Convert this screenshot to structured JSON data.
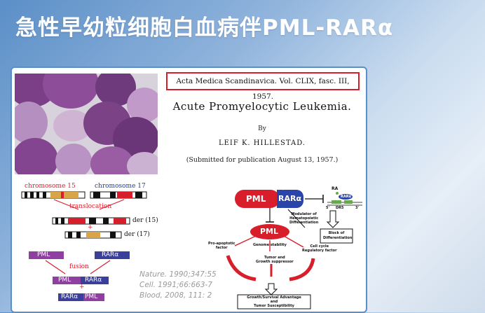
{
  "slide": {
    "title": "急性早幼粒细胞白血病伴PML-RARα"
  },
  "paper": {
    "citation": "Acta Medica Scandinavica. Vol. CLIX, fasc. III, 1957.",
    "title": "Acute Promyelocytic Leukemia.",
    "by": "By",
    "author": "LEIF K. HILLESTAD.",
    "submitted": "(Submitted for publication August 13, 1957.)"
  },
  "chromosome": {
    "chr15_label": "chromosome 15",
    "chr17_label": "chromosome 17",
    "translocation_label": "translocation",
    "der15_label": "der (15)",
    "der17_label": "der (17)",
    "plus": "+",
    "fusion_label": "fusion",
    "pml": "PML",
    "rara": "RARα",
    "fusion_top_pml": "PML",
    "fusion_top_rara": "RARα",
    "fusion_bottom_rara": "RARα",
    "fusion_bottom_pml": "PML"
  },
  "references": [
    "Nature. 1990;347:55",
    "Cell. 1991;66:663-7",
    "Blood, 2008, 111: 2"
  ],
  "pathway": {
    "pml_box": "PML",
    "rara_box": "RARα",
    "ra": "RA",
    "dr5": "DR5",
    "five_prime": "5'",
    "three_prime": "3'",
    "rara_small": "RARα",
    "modulator": [
      "Modulator of",
      "Hematopoietic",
      "Differentiation"
    ],
    "block": [
      "Block of",
      "Differentiation"
    ],
    "pml_center": "PML",
    "pro_apoptotic": [
      "Pro-apoptotic",
      "factor"
    ],
    "genome_stability": "Genome stability",
    "cell_cycle": [
      "Cell cycle",
      "Regulatory factor"
    ],
    "tumor_suppressor": [
      "Tumor and",
      "Growth suppressor"
    ],
    "growth_box": [
      "Growth/Survival Advantage",
      "and",
      "Tumor Susceptibility"
    ]
  },
  "colors": {
    "accent": "#d81e2b",
    "frame": "#5b8fc7",
    "title": "#ffffff"
  }
}
